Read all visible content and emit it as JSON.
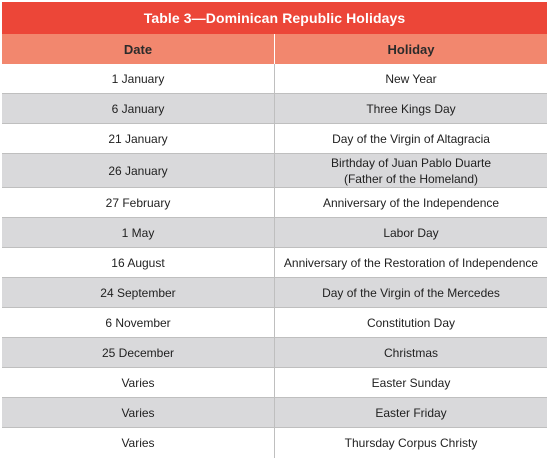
{
  "table": {
    "title": "Table 3—Dominican Republic Holidays",
    "headers": {
      "date": "Date",
      "holiday": "Holiday"
    },
    "rows": [
      {
        "date": "1 January",
        "holiday": "New Year"
      },
      {
        "date": "6 January",
        "holiday": "Three Kings Day"
      },
      {
        "date": "21 January",
        "holiday": "Day of the Virgin of Altagracia"
      },
      {
        "date": "26 January",
        "holiday": "Birthday of Juan Pablo Duarte",
        "holiday_line2": "(Father of the Homeland)"
      },
      {
        "date": "27 February",
        "holiday": "Anniversary of the Independence"
      },
      {
        "date": "1 May",
        "holiday": "Labor Day"
      },
      {
        "date": "16 August",
        "holiday": "Anniversary of the Restoration of Independence"
      },
      {
        "date": "24 September",
        "holiday": "Day of the Virgin of the Mercedes"
      },
      {
        "date": "6 November",
        "holiday": "Constitution Day"
      },
      {
        "date": "25 December",
        "holiday": "Christmas"
      },
      {
        "date": "Varies",
        "holiday": "Easter Sunday"
      },
      {
        "date": "Varies",
        "holiday": "Easter Friday"
      },
      {
        "date": "Varies",
        "holiday": "Thursday Corpus Christy"
      }
    ]
  },
  "colors": {
    "title_bg": "#ec4638",
    "header_bg": "#f2876e",
    "stripe_bg": "#d9d9db"
  }
}
